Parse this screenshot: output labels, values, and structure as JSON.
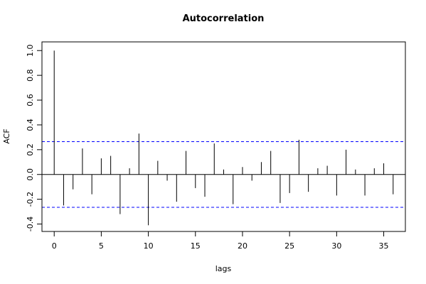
{
  "chart_data": {
    "type": "bar",
    "title": "Autocorrelation",
    "xlabel": "lags",
    "ylabel": "ACF",
    "xlim": [
      -1.3,
      37.3
    ],
    "ylim": [
      -0.46,
      1.07
    ],
    "xticks": [
      0,
      5,
      10,
      15,
      20,
      25,
      30,
      35
    ],
    "yticks": [
      -0.4,
      -0.2,
      0.0,
      0.2,
      0.4,
      0.6,
      0.8,
      1.0
    ],
    "ytick_labels": [
      "-0.4",
      "-0.2",
      "0.0",
      "0.2",
      "0.4",
      "0.6",
      "0.8",
      "1.0"
    ],
    "confidence_bound": 0.265,
    "zero_line": true,
    "grid": false,
    "lags": [
      0,
      1,
      2,
      3,
      4,
      5,
      6,
      7,
      8,
      9,
      10,
      11,
      12,
      13,
      14,
      15,
      16,
      17,
      18,
      19,
      20,
      21,
      22,
      23,
      24,
      25,
      26,
      27,
      28,
      29,
      30,
      31,
      32,
      33,
      34,
      35,
      36
    ],
    "values": [
      1.0,
      -0.25,
      -0.12,
      0.21,
      -0.16,
      0.13,
      0.15,
      -0.32,
      0.05,
      0.33,
      -0.41,
      0.11,
      -0.05,
      -0.22,
      0.19,
      -0.11,
      -0.18,
      0.25,
      0.04,
      -0.24,
      0.06,
      -0.05,
      0.1,
      0.19,
      -0.23,
      -0.15,
      0.28,
      -0.14,
      0.05,
      0.07,
      -0.17,
      0.2,
      0.04,
      -0.17,
      0.05,
      0.09,
      -0.16
    ],
    "colors": {
      "bars": "#000000",
      "bounds": "#0000ff",
      "axes": "#000000",
      "zero_line": "#000000"
    }
  }
}
